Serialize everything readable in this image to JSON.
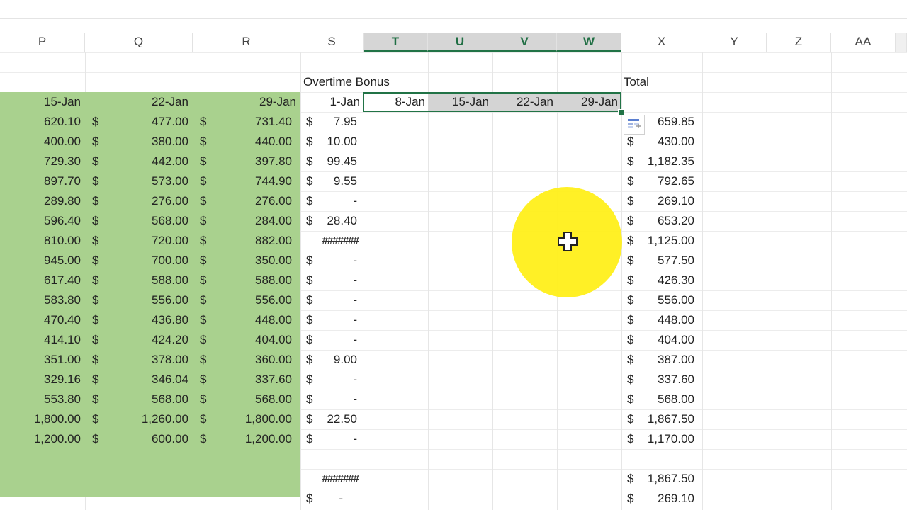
{
  "columns": [
    "P",
    "Q",
    "R",
    "S",
    "T",
    "U",
    "V",
    "W",
    "X",
    "Y",
    "Z",
    "AA"
  ],
  "header_row": {
    "overtime_label": "Overtime Bonus",
    "total_label": "Total",
    "dates_p_r": [
      "15-Jan",
      "22-Jan",
      "29-Jan"
    ],
    "dates_s_w": [
      "1-Jan",
      "8-Jan",
      "15-Jan",
      "22-Jan",
      "29-Jan"
    ]
  },
  "currency_symbol": "$",
  "rows": [
    {
      "p": "620.10",
      "q": "477.00",
      "r": "731.40",
      "s": "7.95",
      "x": "659.85"
    },
    {
      "p": "400.00",
      "q": "380.00",
      "r": "440.00",
      "s": "10.00",
      "x": "430.00"
    },
    {
      "p": "729.30",
      "q": "442.00",
      "r": "397.80",
      "s": "99.45",
      "x": "1,182.35"
    },
    {
      "p": "897.70",
      "q": "573.00",
      "r": "744.90",
      "s": "9.55",
      "x": "792.65"
    },
    {
      "p": "289.80",
      "q": "276.00",
      "r": "276.00",
      "s": "-",
      "x": "269.10"
    },
    {
      "p": "596.40",
      "q": "568.00",
      "r": "284.00",
      "s": "28.40",
      "x": "653.20"
    },
    {
      "p": "810.00",
      "q": "720.00",
      "r": "882.00",
      "s": "#######",
      "x": "1,125.00"
    },
    {
      "p": "945.00",
      "q": "700.00",
      "r": "350.00",
      "s": "-",
      "x": "577.50"
    },
    {
      "p": "617.40",
      "q": "588.00",
      "r": "588.00",
      "s": "-",
      "x": "426.30"
    },
    {
      "p": "583.80",
      "q": "556.00",
      "r": "556.00",
      "s": "-",
      "x": "556.00"
    },
    {
      "p": "470.40",
      "q": "436.80",
      "r": "448.00",
      "s": "-",
      "x": "448.00"
    },
    {
      "p": "414.10",
      "q": "424.20",
      "r": "404.00",
      "s": "-",
      "x": "404.00"
    },
    {
      "p": "351.00",
      "q": "378.00",
      "r": "360.00",
      "s": "9.00",
      "x": "387.00"
    },
    {
      "p": "329.16",
      "q": "346.04",
      "r": "337.60",
      "s": "-",
      "x": "337.60"
    },
    {
      "p": "553.80",
      "q": "568.00",
      "r": "568.00",
      "s": "-",
      "x": "568.00"
    },
    {
      "p": "1,800.00",
      "q": "1,260.00",
      "r": "1,800.00",
      "s": "22.50",
      "x": "1,867.50"
    },
    {
      "p": "1,200.00",
      "q": "600.00",
      "r": "1,200.00",
      "s": "-",
      "x": "1,170.00"
    }
  ],
  "summary_rows": [
    {
      "s": "#######",
      "x": "1,867.50"
    },
    {
      "s": "-",
      "x": "269.10"
    }
  ],
  "colors": {
    "accent": "#217346",
    "green_fill": "#a9d18e",
    "cursor_highlight": "#ffef1a"
  }
}
